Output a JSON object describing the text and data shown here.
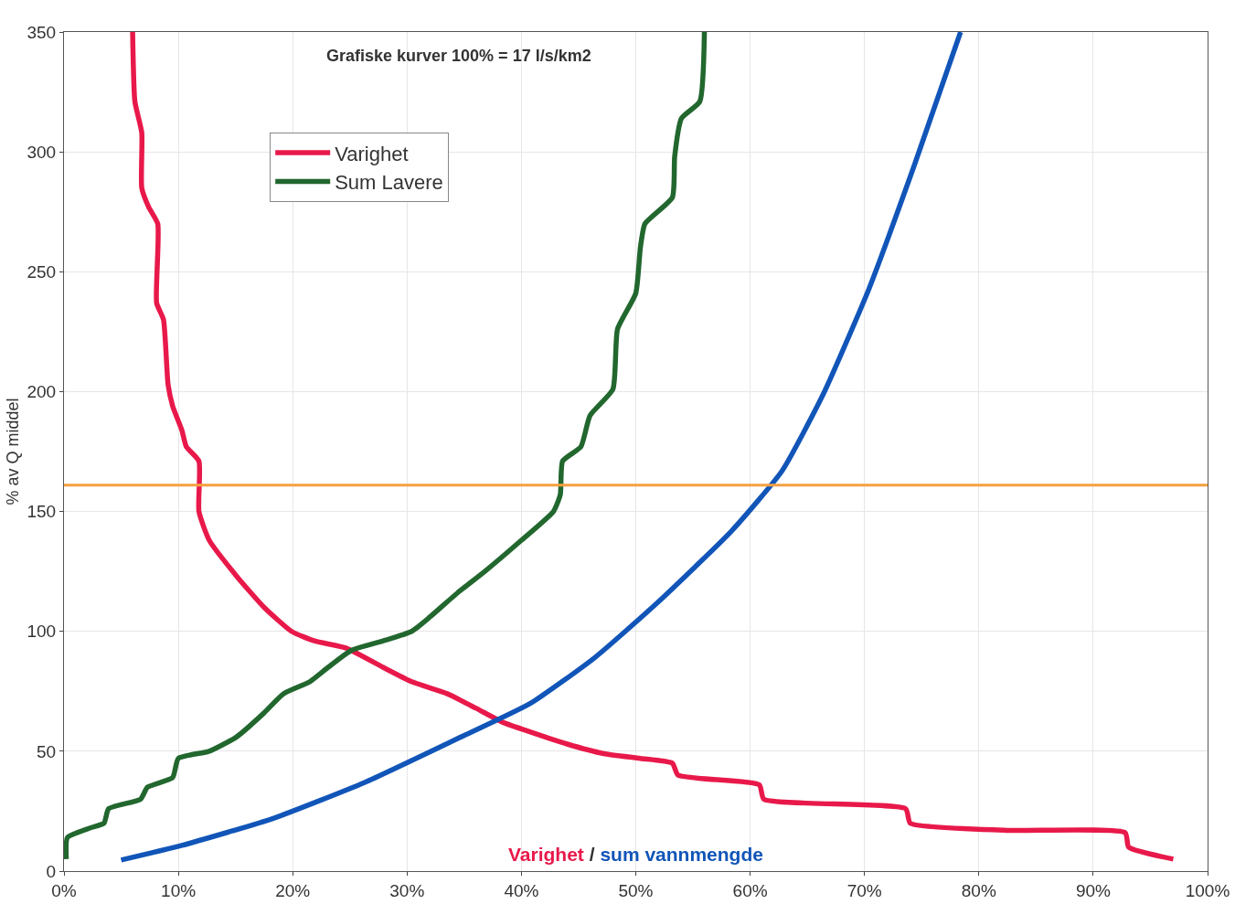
{
  "chart_data": {
    "type": "line",
    "title": "Grafiske kurver 100% = 17 l/s/km2",
    "ylabel": "% av Q middel",
    "annotations": [
      "Varighet",
      "/",
      "sum vannmengde"
    ],
    "xlim": [
      0,
      100
    ],
    "ylim": [
      0,
      350
    ],
    "xticks": [
      {
        "value": 0,
        "label": "0%"
      },
      {
        "value": 10,
        "label": "10%"
      },
      {
        "value": 20,
        "label": "20%"
      },
      {
        "value": 30,
        "label": "30%"
      },
      {
        "value": 40,
        "label": "40%"
      },
      {
        "value": 50,
        "label": "50%"
      },
      {
        "value": 60,
        "label": "60%"
      },
      {
        "value": 70,
        "label": "70%"
      },
      {
        "value": 80,
        "label": "80%"
      },
      {
        "value": 90,
        "label": "90%"
      },
      {
        "value": 100,
        "label": "100%"
      }
    ],
    "yticks": [
      0,
      50,
      100,
      150,
      200,
      250,
      300,
      350
    ],
    "grid": true,
    "legend": "top left",
    "marker": "none",
    "line_style": "solid",
    "ref_lines": [
      {
        "axis": "y",
        "value": 161,
        "color": "#f5a040"
      }
    ],
    "series": [
      {
        "name": "Varighet",
        "color": "#e8194a",
        "x": [
          6.0,
          6.2,
          6.8,
          6.8,
          7.4,
          8.2,
          8.1,
          8.7,
          9.1,
          9.5,
          10.3,
          10.7,
          11.8,
          11.8,
          12.7,
          15.1,
          17.5,
          19.9,
          21.9,
          24.7,
          27.9,
          30.4,
          33.5,
          36.0,
          38.4,
          40.8,
          44.0,
          47.2,
          50.4,
          53.2,
          53.7,
          60.8,
          61.2,
          73.6,
          74.0,
          82.4,
          92.8,
          93.1,
          97.0
        ],
        "values": [
          350,
          321,
          308,
          285,
          277,
          270,
          237,
          230,
          203,
          194,
          184,
          177,
          171,
          150,
          138,
          123,
          110,
          100,
          96,
          93,
          85,
          79,
          74,
          68,
          62,
          58,
          53,
          49,
          47,
          45,
          40,
          36,
          30,
          26,
          20,
          17,
          16,
          10,
          5
        ]
      },
      {
        "name": "Sum Lavere",
        "color": "#21672e",
        "x": [
          0.2,
          0.3,
          2.3,
          3.5,
          3.9,
          6.7,
          7.3,
          9.5,
          10.0,
          12.7,
          15.1,
          17.5,
          19.2,
          21.5,
          23.1,
          25.1,
          27.9,
          30.4,
          32.0,
          34.4,
          36.8,
          40.0,
          42.8,
          43.4,
          43.6,
          45.2,
          46.0,
          48.0,
          48.4,
          50.0,
          50.4,
          50.8,
          53.2,
          53.4,
          54.0,
          55.6,
          56.0
        ],
        "values": [
          5,
          14,
          18,
          20,
          26,
          30,
          35,
          39,
          47,
          50,
          56,
          66,
          74,
          79,
          85,
          92,
          96,
          100,
          106,
          116,
          125,
          138,
          150,
          157,
          171,
          177,
          190,
          201,
          226,
          241,
          260,
          270,
          281,
          298,
          314,
          321,
          350
        ]
      },
      {
        "color": "#1155b8",
        "x": [
          5,
          10.3,
          18.3,
          26.3,
          34.3,
          40.8,
          46.4,
          51.9,
          58.4,
          62.8,
          66.4,
          70.4,
          74.4,
          78.4
        ],
        "values": [
          4.6,
          10.7,
          22,
          37,
          55,
          70,
          89,
          112,
          142,
          167,
          199,
          243,
          295,
          350
        ]
      }
    ]
  }
}
